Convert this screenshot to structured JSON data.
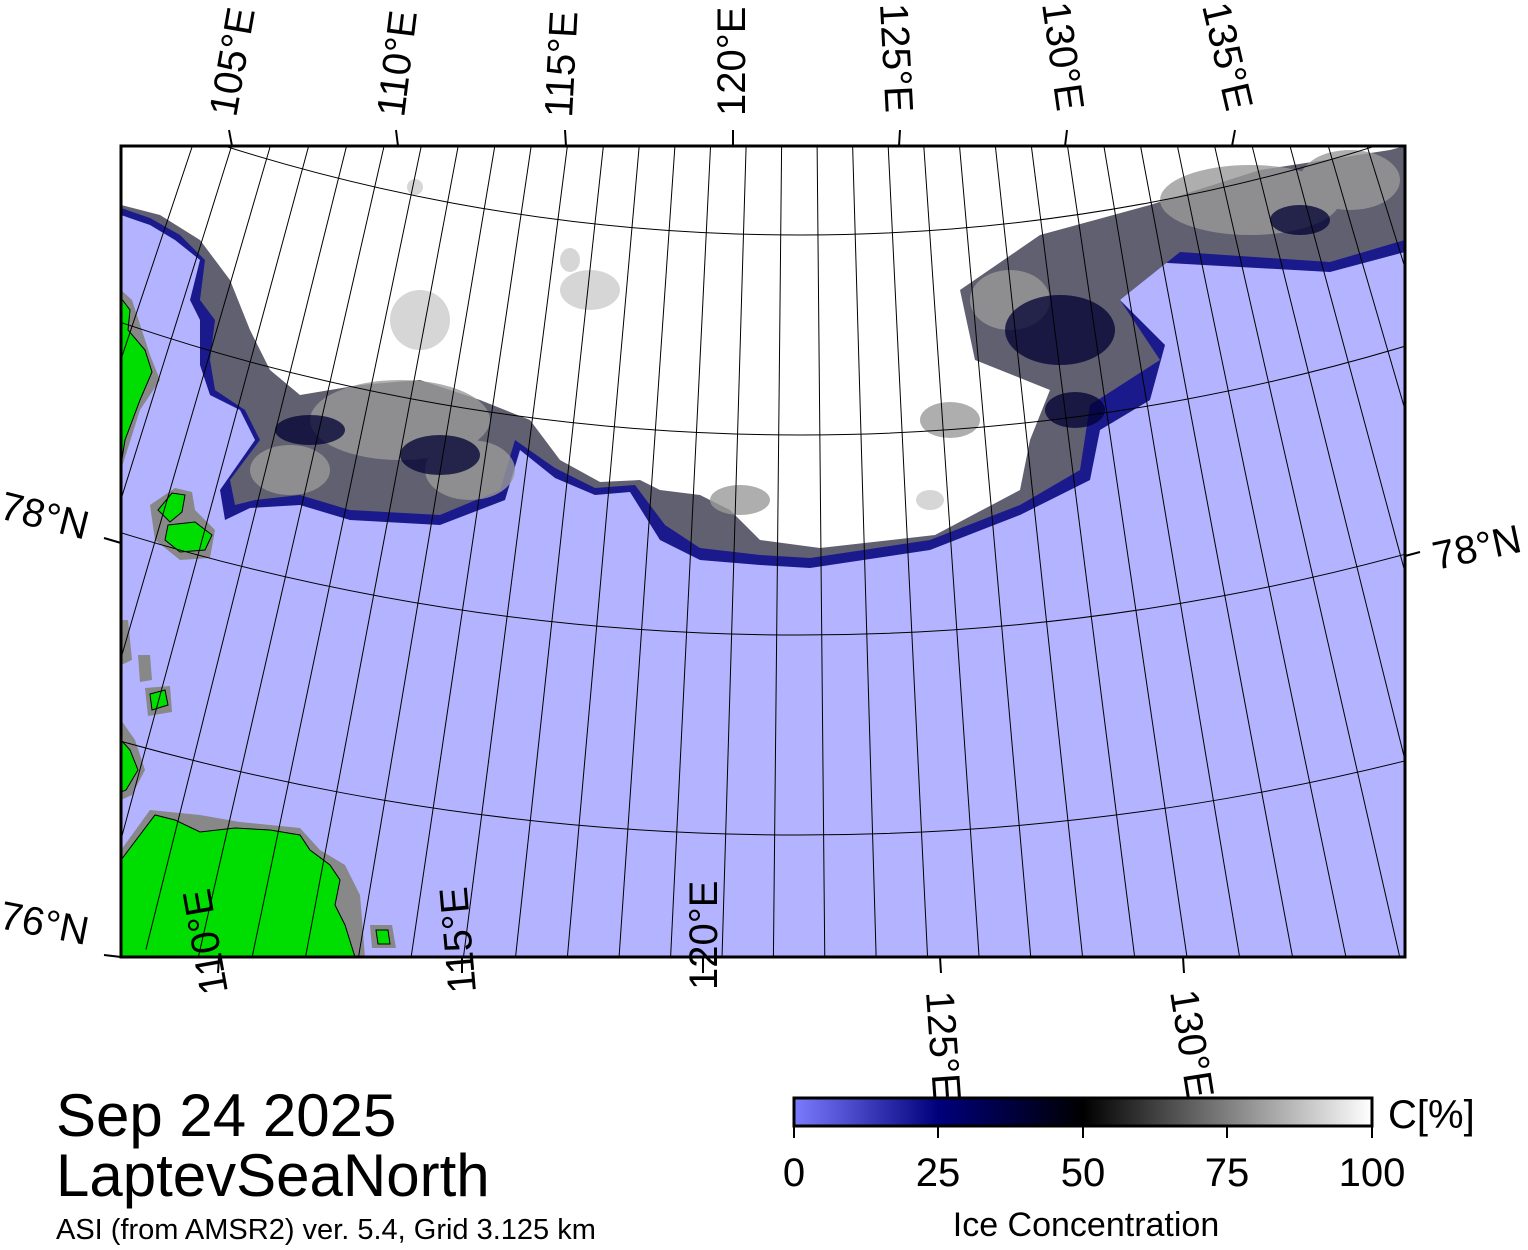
{
  "map": {
    "lon_labels_top": [
      "105°E",
      "110°E",
      "115°E",
      "120°E",
      "125°E",
      "130°E",
      "135°E"
    ],
    "lon_labels_bottom": [
      "110°E",
      "115°E",
      "120°E",
      "125°E",
      "130°E"
    ],
    "lat_labels_left": [
      "78°N",
      "76°N"
    ],
    "lat_labels_right": [
      "78°N"
    ],
    "colors": {
      "open_water": "#b3b3ff",
      "land": "#00dd00",
      "coast_mask": "#888888",
      "ice_high": "#ffffff",
      "ice_low": "#000066"
    }
  },
  "caption": {
    "date": "Sep 24 2025",
    "region": "LaptevSeaNorth",
    "source": "ASI (from AMSR2) ver. 5.4,  Grid 3.125 km"
  },
  "colorbar": {
    "unit": "C[%]",
    "title": "Ice Concentration",
    "ticks": [
      "0",
      "25",
      "50",
      "75",
      "100"
    ],
    "stops": [
      "#7b7bff",
      "#00007a",
      "#000000",
      "#ffffff"
    ]
  }
}
